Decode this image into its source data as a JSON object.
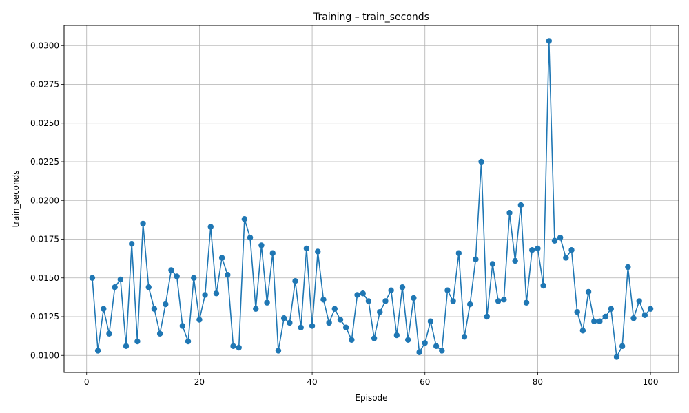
{
  "chart_data": {
    "type": "line",
    "title": "Training – train_seconds",
    "xlabel": "Episode",
    "ylabel": "train_seconds",
    "xlim": [
      -4,
      105
    ],
    "ylim": [
      0.0089,
      0.0313
    ],
    "xticks": [
      0,
      20,
      40,
      60,
      80,
      100
    ],
    "xtick_labels": [
      "0",
      "20",
      "40",
      "60",
      "80",
      "100"
    ],
    "yticks": [
      0.01,
      0.0125,
      0.015,
      0.0175,
      0.02,
      0.0225,
      0.025,
      0.0275,
      0.03
    ],
    "ytick_labels": [
      "0.0100",
      "0.0125",
      "0.0150",
      "0.0175",
      "0.0200",
      "0.0225",
      "0.0250",
      "0.0275",
      "0.0300"
    ],
    "grid": true,
    "color": "#1f77b4",
    "marker": "circle",
    "series": [
      {
        "x": [
          1,
          2,
          3,
          4,
          5,
          6,
          7,
          8,
          9,
          10,
          11,
          12,
          13,
          14,
          15,
          16,
          17,
          18,
          19,
          20,
          21,
          22,
          23,
          24,
          25,
          26,
          27,
          28,
          29,
          30,
          31,
          32,
          33,
          34,
          35,
          36,
          37,
          38,
          39,
          40,
          41,
          42,
          43,
          44,
          45,
          46,
          47,
          48,
          49,
          50,
          51,
          52,
          53,
          54,
          55,
          56,
          57,
          58,
          59,
          60,
          61,
          62,
          63,
          64,
          65,
          66,
          67,
          68,
          69,
          70,
          71,
          72,
          73,
          74,
          75,
          76,
          77,
          78,
          79,
          80,
          81,
          82,
          83,
          84,
          85,
          86,
          87,
          88,
          89,
          90,
          91,
          92,
          93,
          94,
          95,
          96,
          97,
          98,
          99,
          100
        ],
        "values": [
          0.015,
          0.0103,
          0.013,
          0.0114,
          0.0144,
          0.0149,
          0.0106,
          0.0172,
          0.0109,
          0.0185,
          0.0144,
          0.013,
          0.0114,
          0.0133,
          0.0155,
          0.0151,
          0.0119,
          0.0109,
          0.015,
          0.0123,
          0.0139,
          0.0183,
          0.014,
          0.0163,
          0.0152,
          0.0106,
          0.0105,
          0.0188,
          0.0176,
          0.013,
          0.0171,
          0.0134,
          0.0166,
          0.0103,
          0.0124,
          0.0121,
          0.0148,
          0.0118,
          0.0169,
          0.0119,
          0.0167,
          0.0136,
          0.0121,
          0.013,
          0.0123,
          0.0118,
          0.011,
          0.0139,
          0.014,
          0.0135,
          0.0111,
          0.0128,
          0.0135,
          0.0142,
          0.0113,
          0.0144,
          0.011,
          0.0137,
          0.0102,
          0.0108,
          0.0122,
          0.0106,
          0.0103,
          0.0142,
          0.0135,
          0.0166,
          0.0112,
          0.0133,
          0.0162,
          0.0225,
          0.0125,
          0.0159,
          0.0135,
          0.0136,
          0.0192,
          0.0161,
          0.0197,
          0.0134,
          0.0168,
          0.0169,
          0.0145,
          0.0303,
          0.0174,
          0.0176,
          0.0163,
          0.0168,
          0.0128,
          0.0116,
          0.0141,
          0.0122,
          0.0122,
          0.0125,
          0.013,
          0.0099,
          0.0106,
          0.0157,
          0.0124,
          0.0135,
          0.0126,
          0.013
        ]
      }
    ]
  }
}
